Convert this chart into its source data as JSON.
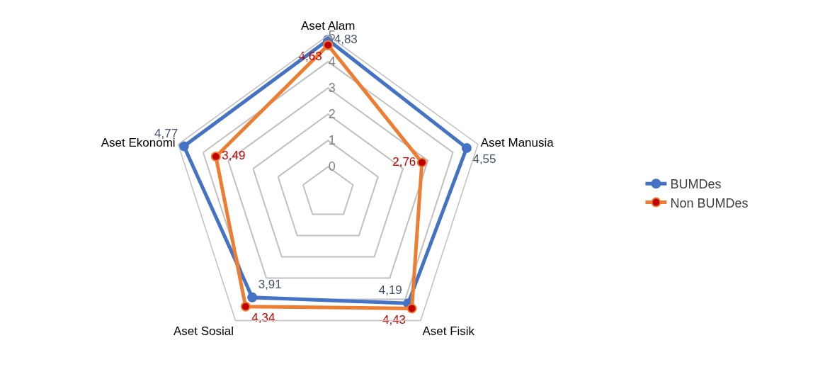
{
  "chart_data": {
    "type": "radar",
    "categories": [
      "Aset Alam",
      "Aset Manusia",
      "Aset Fisik",
      "Aset Sosial",
      "Aset Ekonomi"
    ],
    "series": [
      {
        "name": "BUMDes",
        "color": "#4472c4",
        "values": [
          4.83,
          4.55,
          4.19,
          3.91,
          4.77
        ],
        "value_labels": [
          "4,83",
          "4,55",
          "4,19",
          "3,91",
          "4,77"
        ]
      },
      {
        "name": "Non BUMDes",
        "color": "#ed7d31",
        "values": [
          4.63,
          2.76,
          4.43,
          4.34,
          3.49
        ],
        "value_labels": [
          "4,63",
          "2,76",
          "4,43",
          "4,34",
          "3,49"
        ]
      }
    ],
    "ylim": [
      -1,
      5
    ],
    "yticks": [
      0,
      1,
      2,
      3,
      4,
      5
    ],
    "grid": true,
    "legend": "right",
    "marker": "circle",
    "line_style": "solid"
  }
}
